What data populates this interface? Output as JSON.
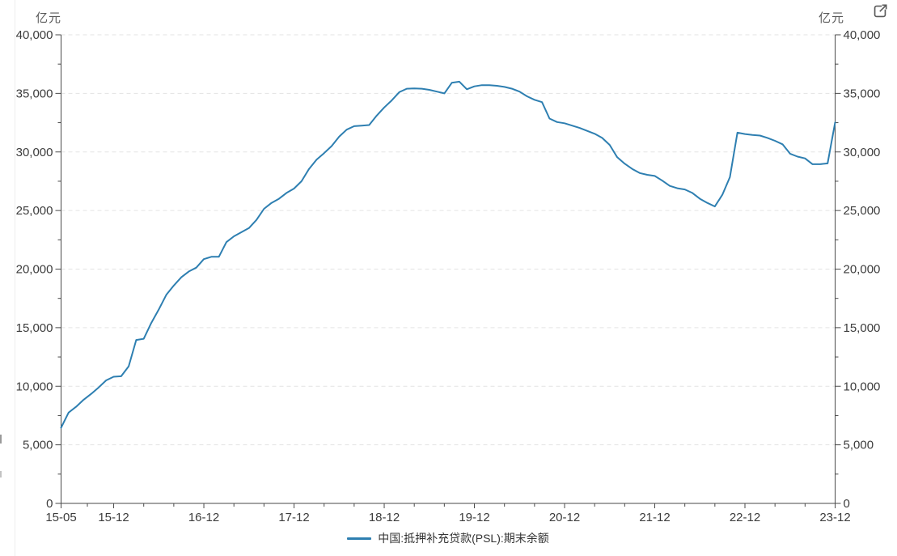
{
  "window": {
    "left_unit": "亿元",
    "right_unit": "亿元"
  },
  "icons": {
    "external_link": "open-in-new-window"
  },
  "colors": {
    "line": "#2e7fb1",
    "axis": "#4a4a4a",
    "grid": "#e3e3e3",
    "tick_label": "#3c3c3c",
    "unit_label": "#595959",
    "icon": "#5a5a5a",
    "legend_text": "#333333"
  },
  "legend": {
    "items": [
      {
        "label": "中国:抵押补充贷款(PSL):期末余额",
        "color": "#2e7fb1"
      }
    ]
  },
  "chart_data": {
    "type": "line",
    "title": "",
    "ylabel_left": "亿元",
    "ylabel_right": "亿元",
    "ylim": [
      0,
      40000
    ],
    "y_major_ticks": [
      0,
      5000,
      10000,
      15000,
      20000,
      25000,
      30000,
      35000,
      40000
    ],
    "y_minor_step": 2500,
    "grid": "horizontal dashed at major ticks, both y axes mirrored",
    "legend_position": "bottom-center",
    "x_tick_labels": [
      "15-05",
      "15-12",
      "16-12",
      "17-12",
      "18-12",
      "19-12",
      "20-12",
      "21-12",
      "22-12",
      "23-12"
    ],
    "x_tick_indices": [
      0,
      7,
      19,
      31,
      43,
      55,
      67,
      79,
      91,
      103
    ],
    "x_months": [
      "2015-05",
      "2015-06",
      "2015-07",
      "2015-08",
      "2015-09",
      "2015-10",
      "2015-11",
      "2015-12",
      "2016-01",
      "2016-02",
      "2016-03",
      "2016-04",
      "2016-05",
      "2016-06",
      "2016-07",
      "2016-08",
      "2016-09",
      "2016-10",
      "2016-11",
      "2016-12",
      "2017-01",
      "2017-02",
      "2017-03",
      "2017-04",
      "2017-05",
      "2017-06",
      "2017-07",
      "2017-08",
      "2017-09",
      "2017-10",
      "2017-11",
      "2017-12",
      "2018-01",
      "2018-02",
      "2018-03",
      "2018-04",
      "2018-05",
      "2018-06",
      "2018-07",
      "2018-08",
      "2018-09",
      "2018-10",
      "2018-11",
      "2018-12",
      "2019-01",
      "2019-02",
      "2019-03",
      "2019-04",
      "2019-05",
      "2019-06",
      "2019-07",
      "2019-08",
      "2019-09",
      "2019-10",
      "2019-11",
      "2019-12",
      "2020-01",
      "2020-02",
      "2020-03",
      "2020-04",
      "2020-05",
      "2020-06",
      "2020-07",
      "2020-08",
      "2020-09",
      "2020-10",
      "2020-11",
      "2020-12",
      "2021-01",
      "2021-02",
      "2021-03",
      "2021-04",
      "2021-05",
      "2021-06",
      "2021-07",
      "2021-08",
      "2021-09",
      "2021-10",
      "2021-11",
      "2021-12",
      "2022-01",
      "2022-02",
      "2022-03",
      "2022-04",
      "2022-05",
      "2022-06",
      "2022-07",
      "2022-08",
      "2022-09",
      "2022-10",
      "2022-11",
      "2022-12",
      "2023-01",
      "2023-02",
      "2023-03",
      "2023-04",
      "2023-05",
      "2023-06",
      "2023-07",
      "2023-08",
      "2023-09",
      "2023-10",
      "2023-11",
      "2023-12"
    ],
    "series": [
      {
        "name": "中国:抵押补充贷款(PSL):期末余额",
        "color": "#2e7fb1",
        "values": [
          6459,
          7750,
          8250,
          8850,
          9350,
          9900,
          10500,
          10812,
          10850,
          11700,
          13950,
          14050,
          15400,
          16550,
          17800,
          18600,
          19300,
          19800,
          20125,
          20850,
          21050,
          21050,
          22300,
          22800,
          23150,
          23500,
          24200,
          25150,
          25650,
          26000,
          26500,
          26876,
          27500,
          28550,
          29350,
          29900,
          30500,
          31300,
          31900,
          32200,
          32250,
          32300,
          33100,
          33795,
          34400,
          35100,
          35400,
          35420,
          35400,
          35300,
          35150,
          35000,
          35900,
          36000,
          35350,
          35600,
          35700,
          35700,
          35650,
          35550,
          35400,
          35150,
          34750,
          34450,
          34250,
          32850,
          32550,
          32450,
          32250,
          32050,
          31800,
          31550,
          31200,
          30600,
          29550,
          29000,
          28550,
          28200,
          28050,
          27950,
          27550,
          27100,
          26900,
          26800,
          26500,
          26000,
          25650,
          25350,
          26350,
          27850,
          31650,
          31528,
          31450,
          31400,
          31200,
          30950,
          30650,
          29850,
          29600,
          29450,
          28950,
          28950,
          29022,
          32522
        ]
      }
    ]
  }
}
